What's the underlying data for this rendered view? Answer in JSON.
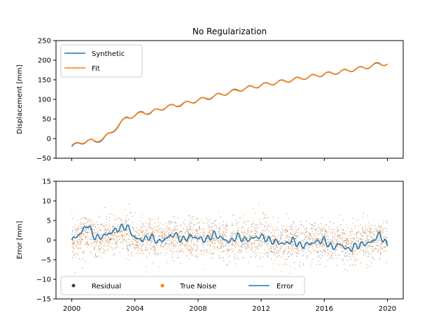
{
  "chart_data": [
    {
      "type": "line",
      "title": "No Regularization",
      "xlabel": "",
      "ylabel": "Displacement [mm]",
      "xlim": [
        1999.0,
        2021.0
      ],
      "ylim": [
        -50,
        250
      ],
      "yticks": [
        "−50",
        "0",
        "50",
        "100",
        "150",
        "200",
        "250"
      ],
      "ytick_values": [
        -50,
        0,
        50,
        100,
        150,
        200,
        250
      ],
      "xtick_values": [
        2000,
        2004,
        2008,
        2012,
        2016,
        2020
      ],
      "grid": false,
      "legend_position": "top-left",
      "series": [
        {
          "name": "Synthetic",
          "color": "#1f77b4",
          "x": [
            2000.0,
            2000.5,
            2001.0,
            2001.5,
            2002.0,
            2002.5,
            2003.0,
            2003.5,
            2004.0,
            2004.5,
            2005.0,
            2005.5,
            2006.0,
            2006.5,
            2007.0,
            2007.5,
            2008.0,
            2008.5,
            2009.0,
            2009.5,
            2010.0,
            2010.5,
            2011.0,
            2011.5,
            2012.0,
            2012.5,
            2013.0,
            2013.5,
            2014.0,
            2014.5,
            2015.0,
            2015.5,
            2016.0,
            2016.5,
            2017.0,
            2017.5,
            2018.0,
            2018.5,
            2019.0,
            2019.5,
            2020.0
          ],
          "y": [
            -20,
            -12,
            -5,
            -8,
            0,
            15,
            35,
            55,
            58,
            68,
            65,
            75,
            80,
            85,
            87,
            93,
            98,
            102,
            108,
            113,
            118,
            124,
            128,
            132,
            136,
            140,
            143,
            147,
            150,
            154,
            157,
            161,
            164,
            167,
            170,
            174,
            177,
            181,
            185,
            192,
            190
          ]
        },
        {
          "name": "Fit",
          "color": "#ff7f0e",
          "x": [
            2000.0,
            2000.5,
            2001.0,
            2001.5,
            2002.0,
            2002.5,
            2003.0,
            2003.5,
            2004.0,
            2004.5,
            2005.0,
            2005.5,
            2006.0,
            2006.5,
            2007.0,
            2007.5,
            2008.0,
            2008.5,
            2009.0,
            2009.5,
            2010.0,
            2010.5,
            2011.0,
            2011.5,
            2012.0,
            2012.5,
            2013.0,
            2013.5,
            2014.0,
            2014.5,
            2015.0,
            2015.5,
            2016.0,
            2016.5,
            2017.0,
            2017.5,
            2018.0,
            2018.5,
            2019.0,
            2019.5,
            2020.0
          ],
          "y": [
            -18,
            -11,
            -5,
            -7,
            1,
            16,
            36,
            54,
            58,
            67,
            66,
            75,
            80,
            85,
            88,
            93,
            98,
            103,
            108,
            113,
            118,
            123,
            128,
            132,
            136,
            140,
            143,
            147,
            150,
            154,
            157,
            161,
            164,
            167,
            170,
            174,
            177,
            181,
            185,
            191,
            190
          ]
        }
      ]
    },
    {
      "type": "scatter",
      "title": "",
      "xlabel": "",
      "ylabel": "Error [mm]",
      "xlim": [
        1999.0,
        2021.0
      ],
      "ylim": [
        -15,
        15
      ],
      "yticks": [
        "−15",
        "−10",
        "−5",
        "0",
        "5",
        "10",
        "15"
      ],
      "ytick_values": [
        -15,
        -10,
        -5,
        0,
        5,
        10,
        15
      ],
      "xticks": [
        "2000",
        "2004",
        "2008",
        "2012",
        "2016",
        "2020"
      ],
      "xtick_values": [
        2000,
        2004,
        2008,
        2012,
        2016,
        2020
      ],
      "grid": false,
      "legend_position": "bottom-left",
      "series": [
        {
          "name": "Residual",
          "color": "#404040",
          "marker": "dot",
          "x_range": [
            2000.0,
            2020.0
          ],
          "y_spread": 2.5
        },
        {
          "name": "True Noise",
          "color": "#ff7f0e",
          "marker": "dot",
          "x_range": [
            2000.0,
            2020.0
          ],
          "y_spread": 2.5
        },
        {
          "name": "Error",
          "color": "#1f77b4",
          "marker": "line",
          "x": [
            2000.0,
            2000.5,
            2001.0,
            2001.5,
            2002.0,
            2002.5,
            2003.0,
            2003.5,
            2004.0,
            2004.5,
            2005.0,
            2005.5,
            2006.0,
            2006.5,
            2007.0,
            2007.5,
            2008.0,
            2008.5,
            2009.0,
            2009.5,
            2010.0,
            2010.5,
            2011.0,
            2011.5,
            2012.0,
            2012.5,
            2013.0,
            2013.5,
            2014.0,
            2014.5,
            2015.0,
            2015.5,
            2016.0,
            2016.5,
            2017.0,
            2017.5,
            2018.0,
            2018.5,
            2019.0,
            2019.5,
            2020.0
          ],
          "y": [
            0.0,
            1.5,
            4.0,
            0.5,
            1.0,
            2.0,
            3.0,
            3.5,
            0.5,
            0.0,
            1.0,
            -0.5,
            0.5,
            1.5,
            0.0,
            1.0,
            0.5,
            0.0,
            1.5,
            0.5,
            -0.5,
            1.0,
            0.0,
            0.5,
            1.0,
            0.0,
            -0.5,
            -1.0,
            0.0,
            -1.5,
            -1.0,
            -0.5,
            0.0,
            -2.0,
            -1.0,
            -2.5,
            -1.5,
            -1.0,
            -0.5,
            1.5,
            -1.5
          ]
        }
      ]
    }
  ]
}
